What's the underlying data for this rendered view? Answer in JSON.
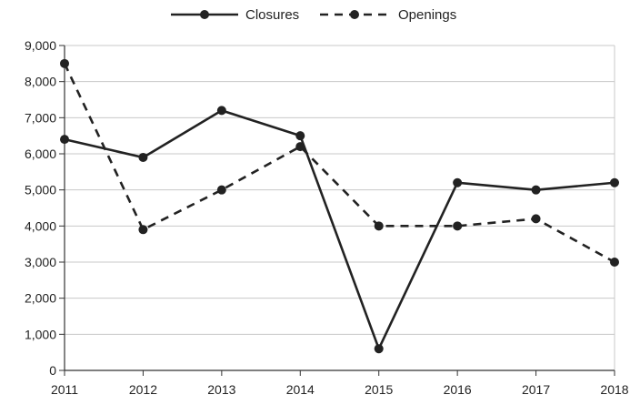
{
  "chart_data": {
    "type": "line",
    "categories": [
      "2011",
      "2012",
      "2013",
      "2014",
      "2015",
      "2016",
      "2017",
      "2018"
    ],
    "series": [
      {
        "name": "Closures",
        "values": [
          6400,
          5900,
          7200,
          6500,
          600,
          5200,
          5000,
          5200
        ],
        "line_style": "solid",
        "color": "#222222"
      },
      {
        "name": "Openings",
        "values": [
          8500,
          3900,
          5000,
          6200,
          4000,
          4000,
          4200,
          3000
        ],
        "line_style": "dashed",
        "color": "#222222"
      }
    ],
    "ylim": [
      0,
      9000
    ],
    "yticks": [
      0,
      1000,
      2000,
      3000,
      4000,
      5000,
      6000,
      7000,
      8000,
      9000
    ],
    "ytick_labels": [
      "0",
      "1,000",
      "2,000",
      "3,000",
      "4,000",
      "5,000",
      "6,000",
      "7,000",
      "8,000",
      "9,000"
    ],
    "grid": "horizontal",
    "legend_position": "top-center",
    "title": "",
    "xlabel": "",
    "ylabel": ""
  }
}
